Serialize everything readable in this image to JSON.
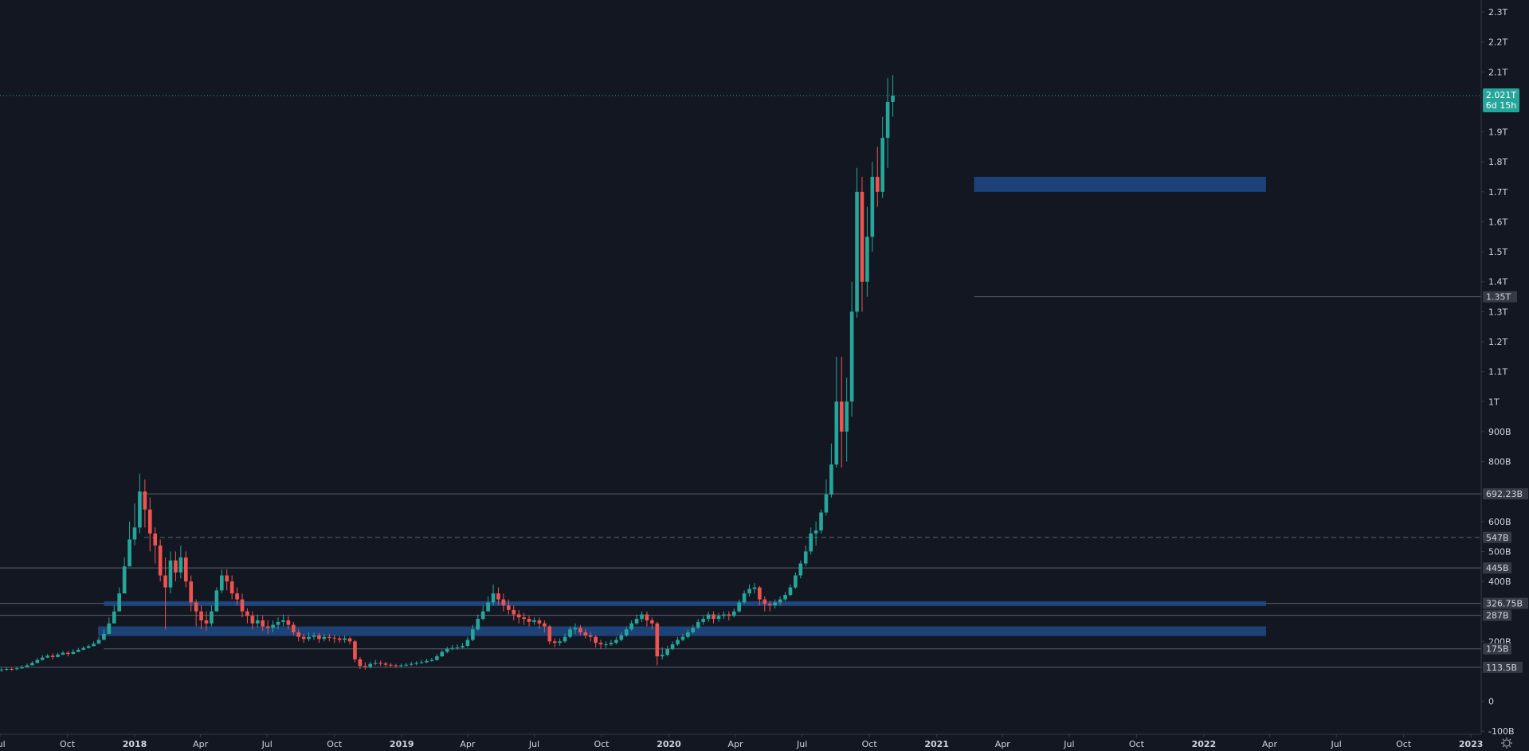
{
  "colors": {
    "background": "#131722",
    "up": "#26a69a",
    "down": "#ef5350",
    "zone": "#1e4a86",
    "level_line": "#5d606b",
    "axis_text": "#d1d4dc",
    "price_badge": "#26a69a",
    "level_badge": "#363a45"
  },
  "chart_data": {
    "type": "candlestick",
    "y_axis": {
      "tick_labels": [
        "2.3T",
        "2.2T",
        "2.1T",
        "1.9T",
        "1.8T",
        "1.7T",
        "1.6T",
        "1.5T",
        "1.4T",
        "1.3T",
        "1.2T",
        "1.1T",
        "1T",
        "900B",
        "800B",
        "600B",
        "500B",
        "400B",
        "200B",
        "0",
        "-100B"
      ],
      "tick_values": [
        2300,
        2200,
        2100,
        1900,
        1800,
        1700,
        1600,
        1500,
        1400,
        1300,
        1200,
        1100,
        1000,
        900,
        800,
        600,
        500,
        400,
        200,
        0,
        -100
      ],
      "range": [
        -110,
        2340
      ],
      "unit": "billions"
    },
    "x_axis": {
      "range": [
        "2017-07-01",
        "2023-01-15"
      ],
      "tick_labels": [
        {
          "label": "Jul",
          "date": "2017-07-01",
          "bold": false
        },
        {
          "label": "Oct",
          "date": "2017-10-01",
          "bold": false
        },
        {
          "label": "2018",
          "date": "2018-01-01",
          "bold": true
        },
        {
          "label": "Apr",
          "date": "2018-04-01",
          "bold": false
        },
        {
          "label": "Jul",
          "date": "2018-07-01",
          "bold": false
        },
        {
          "label": "Oct",
          "date": "2018-10-01",
          "bold": false
        },
        {
          "label": "2019",
          "date": "2019-01-01",
          "bold": true
        },
        {
          "label": "Apr",
          "date": "2019-04-01",
          "bold": false
        },
        {
          "label": "Jul",
          "date": "2019-07-01",
          "bold": false
        },
        {
          "label": "Oct",
          "date": "2019-10-01",
          "bold": false
        },
        {
          "label": "2020",
          "date": "2020-01-01",
          "bold": true
        },
        {
          "label": "Apr",
          "date": "2020-04-01",
          "bold": false
        },
        {
          "label": "Jul",
          "date": "2020-07-01",
          "bold": false
        },
        {
          "label": "Oct",
          "date": "2020-10-01",
          "bold": false
        },
        {
          "label": "2021",
          "date": "2021-01-01",
          "bold": true
        },
        {
          "label": "Apr",
          "date": "2021-04-01",
          "bold": false
        },
        {
          "label": "Jul",
          "date": "2021-07-01",
          "bold": false
        },
        {
          "label": "Oct",
          "date": "2021-10-01",
          "bold": false
        },
        {
          "label": "2022",
          "date": "2022-01-01",
          "bold": true
        },
        {
          "label": "Apr",
          "date": "2022-04-01",
          "bold": false
        },
        {
          "label": "Jul",
          "date": "2022-07-01",
          "bold": false
        },
        {
          "label": "Oct",
          "date": "2022-10-01",
          "bold": false
        },
        {
          "label": "2023",
          "date": "2023-01-01",
          "bold": true
        }
      ]
    },
    "current_price": {
      "value_label": "2.021T",
      "value": 2021,
      "countdown": "6d 15h"
    },
    "levels": [
      {
        "label": "1.35T",
        "value": 1350,
        "from": "2021-02-21",
        "style": "solid"
      },
      {
        "label": "692.23B",
        "value": 692.23,
        "from": "2018-01-07",
        "style": "solid"
      },
      {
        "label": "547B",
        "value": 547,
        "from": "2018-01-14",
        "style": "dashed"
      },
      {
        "label": "445B",
        "value": 445,
        "from": "2017-07-01",
        "style": "solid"
      },
      {
        "label": "326.75B",
        "value": 326.75,
        "from": "2017-07-01",
        "style": "solid"
      },
      {
        "label": "287B",
        "value": 287,
        "from": "2017-07-01",
        "style": "solid"
      },
      {
        "label": "175B",
        "value": 175,
        "from": "2017-11-20",
        "style": "solid"
      },
      {
        "label": "113.5B",
        "value": 113.5,
        "from": "2017-07-01",
        "style": "solid"
      }
    ],
    "zones": [
      {
        "from": "2021-02-21",
        "to": "2022-03-27",
        "low": 1700,
        "high": 1750
      },
      {
        "from": "2017-11-20",
        "to": "2022-03-27",
        "low": 318,
        "high": 334
      },
      {
        "from": "2017-11-12",
        "to": "2022-03-27",
        "low": 218,
        "high": 250
      }
    ],
    "candles": {
      "interval": "1W",
      "start_date": "2017-07-03",
      "open_first": 104,
      "close": [
        106,
        108,
        107,
        110,
        114,
        120,
        128,
        138,
        146,
        152,
        148,
        156,
        162,
        158,
        165,
        172,
        178,
        184,
        192,
        205,
        225,
        260,
        300,
        360,
        450,
        540,
        580,
        700,
        640,
        560,
        520,
        420,
        380,
        470,
        430,
        480,
        400,
        330,
        300,
        270,
        260,
        300,
        370,
        420,
        400,
        360,
        340,
        300,
        285,
        260,
        270,
        250,
        245,
        255,
        265,
        270,
        255,
        230,
        215,
        208,
        215,
        220,
        208,
        215,
        212,
        210,
        205,
        210,
        200,
        140,
        118,
        115,
        125,
        128,
        126,
        122,
        120,
        118,
        120,
        122,
        125,
        128,
        130,
        135,
        138,
        150,
        165,
        175,
        178,
        180,
        185,
        205,
        240,
        275,
        300,
        330,
        360,
        340,
        320,
        305,
        290,
        280,
        275,
        265,
        270,
        260,
        250,
        200,
        195,
        200,
        215,
        240,
        245,
        230,
        220,
        215,
        195,
        190,
        190,
        195,
        205,
        220,
        240,
        260,
        275,
        290,
        270,
        260,
        150,
        155,
        175,
        190,
        205,
        215,
        230,
        245,
        265,
        275,
        290,
        275,
        285,
        290,
        285,
        300,
        330,
        360,
        375,
        380,
        340,
        325,
        320,
        330,
        340,
        355,
        380,
        420,
        460,
        500,
        560,
        570,
        630,
        690,
        790,
        1000,
        900,
        1000,
        1300,
        1700,
        1400,
        1550,
        1750,
        1700,
        1880,
        2000,
        2021
      ],
      "high": [
        112,
        114,
        112,
        116,
        120,
        126,
        134,
        144,
        154,
        158,
        160,
        162,
        168,
        168,
        174,
        178,
        184,
        190,
        200,
        215,
        240,
        280,
        320,
        380,
        480,
        600,
        660,
        760,
        740,
        680,
        580,
        540,
        480,
        500,
        500,
        520,
        500,
        420,
        340,
        320,
        300,
        320,
        380,
        440,
        440,
        420,
        380,
        360,
        310,
        300,
        290,
        285,
        270,
        270,
        280,
        290,
        285,
        265,
        240,
        225,
        230,
        230,
        228,
        225,
        225,
        222,
        218,
        220,
        215,
        205,
        148,
        130,
        132,
        138,
        136,
        132,
        128,
        125,
        126,
        128,
        132,
        134,
        138,
        142,
        145,
        158,
        172,
        182,
        188,
        190,
        195,
        215,
        255,
        290,
        320,
        350,
        390,
        380,
        360,
        340,
        320,
        305,
        295,
        285,
        280,
        280,
        270,
        255,
        210,
        210,
        225,
        250,
        260,
        255,
        240,
        230,
        220,
        205,
        200,
        205,
        215,
        230,
        250,
        270,
        290,
        300,
        300,
        280,
        265,
        180,
        185,
        200,
        215,
        225,
        240,
        255,
        275,
        285,
        300,
        300,
        295,
        300,
        300,
        310,
        340,
        370,
        390,
        395,
        385,
        350,
        335,
        340,
        350,
        365,
        390,
        430,
        470,
        520,
        580,
        600,
        640,
        740,
        860,
        1150,
        1150,
        1080,
        1400,
        1780,
        1750,
        1650,
        1800,
        1850,
        1950,
        2080,
        2090
      ],
      "low": [
        98,
        102,
        102,
        104,
        108,
        114,
        120,
        126,
        136,
        144,
        140,
        146,
        154,
        150,
        157,
        164,
        170,
        176,
        184,
        194,
        205,
        225,
        260,
        300,
        360,
        450,
        520,
        560,
        580,
        500,
        460,
        400,
        240,
        360,
        400,
        410,
        380,
        300,
        250,
        240,
        235,
        250,
        300,
        360,
        370,
        340,
        320,
        280,
        260,
        240,
        245,
        235,
        225,
        230,
        240,
        250,
        240,
        220,
        200,
        195,
        200,
        205,
        195,
        200,
        200,
        195,
        195,
        195,
        190,
        130,
        108,
        106,
        110,
        120,
        118,
        115,
        113,
        112,
        114,
        116,
        118,
        120,
        125,
        128,
        132,
        135,
        148,
        160,
        170,
        172,
        176,
        180,
        200,
        235,
        270,
        300,
        320,
        320,
        300,
        290,
        270,
        260,
        255,
        250,
        255,
        240,
        230,
        190,
        180,
        185,
        195,
        210,
        225,
        220,
        210,
        200,
        180,
        175,
        178,
        185,
        190,
        200,
        215,
        235,
        255,
        265,
        250,
        240,
        120,
        140,
        150,
        170,
        185,
        200,
        210,
        225,
        240,
        255,
        265,
        260,
        265,
        275,
        270,
        280,
        295,
        325,
        350,
        360,
        320,
        300,
        300,
        310,
        320,
        335,
        350,
        375,
        410,
        450,
        490,
        520,
        560,
        620,
        680,
        780,
        780,
        800,
        950,
        1280,
        1300,
        1350,
        1500,
        1650,
        1680,
        1780,
        1950
      ]
    }
  }
}
